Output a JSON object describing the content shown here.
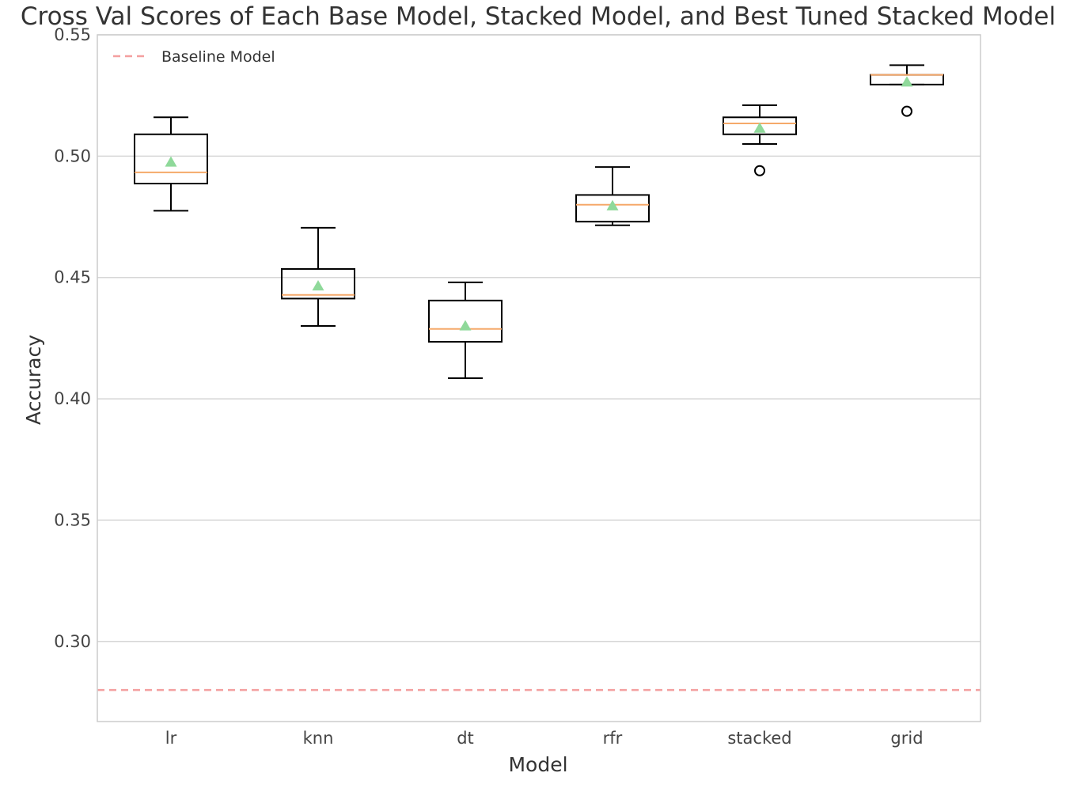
{
  "chart_data": {
    "type": "box",
    "title": "Cross Val Scores of Each Base Model, Stacked Model, and Best Tuned Stacked Model",
    "xlabel": "Model",
    "ylabel": "Accuracy",
    "ylim": [
      0.267,
      0.55
    ],
    "yticks": [
      0.3,
      0.35,
      0.4,
      0.45,
      0.5,
      0.55
    ],
    "ytick_labels": [
      "0.30",
      "0.35",
      "0.40",
      "0.45",
      "0.50",
      "0.55"
    ],
    "grid": true,
    "categories": [
      "lr",
      "knn",
      "dt",
      "rfr",
      "stacked",
      "grid"
    ],
    "boxes": [
      {
        "name": "lr",
        "whislo": 0.4775,
        "q1": 0.4887,
        "med": 0.4933,
        "q3": 0.509,
        "whishi": 0.516,
        "mean": 0.4975,
        "fliers": []
      },
      {
        "name": "knn",
        "whislo": 0.43,
        "q1": 0.4413,
        "med": 0.4428,
        "q3": 0.4535,
        "whishi": 0.4705,
        "mean": 0.4465,
        "fliers": []
      },
      {
        "name": "dt",
        "whislo": 0.4085,
        "q1": 0.4235,
        "med": 0.4288,
        "q3": 0.4405,
        "whishi": 0.448,
        "mean": 0.43,
        "fliers": []
      },
      {
        "name": "rfr",
        "whislo": 0.4715,
        "q1": 0.473,
        "med": 0.48,
        "q3": 0.484,
        "whishi": 0.4955,
        "mean": 0.4795,
        "fliers": []
      },
      {
        "name": "stacked",
        "whislo": 0.505,
        "q1": 0.509,
        "med": 0.5135,
        "q3": 0.516,
        "whishi": 0.521,
        "mean": 0.5115,
        "fliers": [
          0.494
        ]
      },
      {
        "name": "grid",
        "whislo": 0.5295,
        "q1": 0.5295,
        "med": 0.5335,
        "q3": 0.5335,
        "whishi": 0.5375,
        "mean": 0.5305,
        "fliers": [
          0.5185
        ]
      }
    ],
    "reference_lines": [
      {
        "name": "Baseline Model",
        "value": 0.28,
        "style": "dashed"
      }
    ],
    "legend": {
      "position": "top-left",
      "entries": [
        "Baseline Model"
      ]
    },
    "colors": {
      "box": "#000000",
      "median": "#f5a96a",
      "mean": "#8fd99a",
      "baseline": "#f4a0a0",
      "grid": "#d6d6d6",
      "frame": "#cccccc"
    }
  }
}
